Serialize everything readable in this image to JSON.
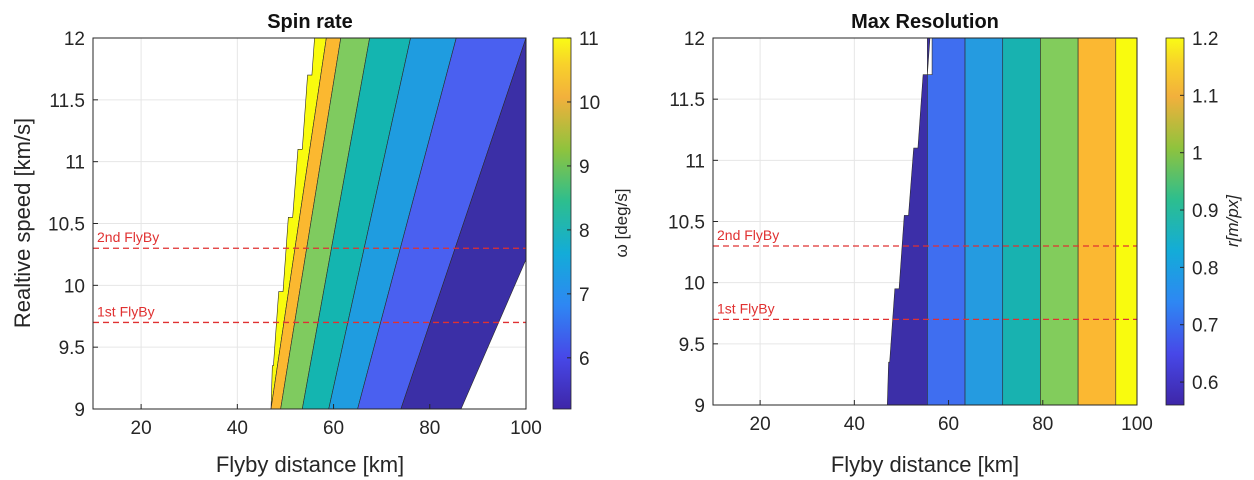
{
  "chart_data": [
    {
      "type": "contourf",
      "title": "Spin rate",
      "xlabel": "Flyby distance [km]",
      "ylabel": "Realtive speed [km/s]",
      "xlim": [
        10,
        100
      ],
      "ylim": [
        9,
        12
      ],
      "xticks": [
        "20",
        "40",
        "60",
        "80",
        "100"
      ],
      "xtick_values": [
        20,
        40,
        60,
        80,
        100
      ],
      "yticks": [
        "9",
        "9.5",
        "10",
        "10.5",
        "11",
        "11.5",
        "12"
      ],
      "ytick_values": [
        9,
        9.5,
        10,
        10.5,
        11,
        11.5,
        12
      ],
      "grid": true,
      "colorbar": {
        "label": "ω [deg/s]",
        "range": [
          5.2,
          11
        ],
        "ticks": [
          "6",
          "7",
          "8",
          "9",
          "10",
          "11"
        ],
        "tick_values": [
          6,
          7,
          8,
          9,
          10,
          11
        ]
      },
      "levels": [
        {
          "range": "11+",
          "color": "#f9fb0e",
          "boundary_x_at_ymin": 47,
          "boundary_x_at_ymax": 58.5
        },
        {
          "range": "10-11",
          "color": "#fbb830",
          "boundary_x_at_ymin": 49,
          "boundary_x_at_ymax": 61.5
        },
        {
          "range": "9-10",
          "color": "#7fcb5f",
          "boundary_x_at_ymin": 53.5,
          "boundary_x_at_ymax": 67.5
        },
        {
          "range": "8-9",
          "color": "#14b5b0",
          "boundary_x_at_ymin": 59,
          "boundary_x_at_ymax": 76
        },
        {
          "range": "7-8",
          "color": "#1f9ce0",
          "boundary_x_at_ymin": 65,
          "boundary_x_at_ymax": 85.5
        },
        {
          "range": "6-7",
          "color": "#4a60f0",
          "boundary_x_at_ymin": 74,
          "boundary_x_at_ymax": 100
        },
        {
          "range": "<6",
          "color": "#3b2fa6",
          "boundary_x_at_ymin": 86.5,
          "boundary_x_at_ymax": 120
        }
      ],
      "feasible_left_boundary": [
        {
          "x": 47,
          "y": 9
        },
        {
          "x": 47.5,
          "y": 9.35
        },
        {
          "x": 49.5,
          "y": 9.95
        },
        {
          "x": 51.5,
          "y": 10.55
        },
        {
          "x": 53.5,
          "y": 11.1
        },
        {
          "x": 55.5,
          "y": 11.7
        },
        {
          "x": 56.5,
          "y": 12
        }
      ],
      "reference_lines": [
        {
          "label": "2nd FlyBy",
          "y": 10.3,
          "color": "#e03131"
        },
        {
          "label": "1st FlyBy",
          "y": 9.7,
          "color": "#e03131"
        }
      ]
    },
    {
      "type": "contourf",
      "title": "Max Resolution",
      "xlabel": "Flyby distance [km]",
      "ylabel": "",
      "xlim": [
        10,
        100
      ],
      "ylim": [
        9,
        12
      ],
      "xticks": [
        "20",
        "40",
        "60",
        "80",
        "100"
      ],
      "xtick_values": [
        20,
        40,
        60,
        80,
        100
      ],
      "yticks": [
        "9",
        "9.5",
        "10",
        "10.5",
        "11",
        "11.5",
        "12"
      ],
      "ytick_values": [
        9,
        9.5,
        10,
        10.5,
        11,
        11.5,
        12
      ],
      "grid": true,
      "colorbar": {
        "label": "r[m/px]",
        "range": [
          0.56,
          1.2
        ],
        "ticks": [
          "0.6",
          "0.7",
          "0.8",
          "0.9",
          "1",
          "1.1",
          "1.2"
        ],
        "tick_values": [
          0.6,
          0.7,
          0.8,
          0.9,
          1.0,
          1.1,
          1.2
        ]
      },
      "bands": [
        {
          "x_start": 47,
          "x_end": 55.5,
          "color": "#3c2fa8"
        },
        {
          "x_start": 55.5,
          "x_end": 63.5,
          "color": "#3f6ef0"
        },
        {
          "x_start": 63.5,
          "x_end": 71.5,
          "color": "#259be0"
        },
        {
          "x_start": 71.5,
          "x_end": 79.5,
          "color": "#18b2b0"
        },
        {
          "x_start": 79.5,
          "x_end": 87.5,
          "color": "#82cc5c"
        },
        {
          "x_start": 87.5,
          "x_end": 95.5,
          "color": "#fbb832"
        },
        {
          "x_start": 95.5,
          "x_end": 100,
          "color": "#f9fb0e"
        }
      ],
      "feasible_left_boundary": [
        {
          "x": 47,
          "y": 9
        },
        {
          "x": 47.5,
          "y": 9.35
        },
        {
          "x": 49.5,
          "y": 9.95
        },
        {
          "x": 51.5,
          "y": 10.55
        },
        {
          "x": 53.5,
          "y": 11.1
        },
        {
          "x": 55.5,
          "y": 11.7
        },
        {
          "x": 56.5,
          "y": 12
        }
      ],
      "reference_lines": [
        {
          "label": "2nd FlyBy",
          "y": 10.3,
          "color": "#e03131"
        },
        {
          "label": "1st FlyBy",
          "y": 9.7,
          "color": "#e03131"
        }
      ]
    }
  ]
}
